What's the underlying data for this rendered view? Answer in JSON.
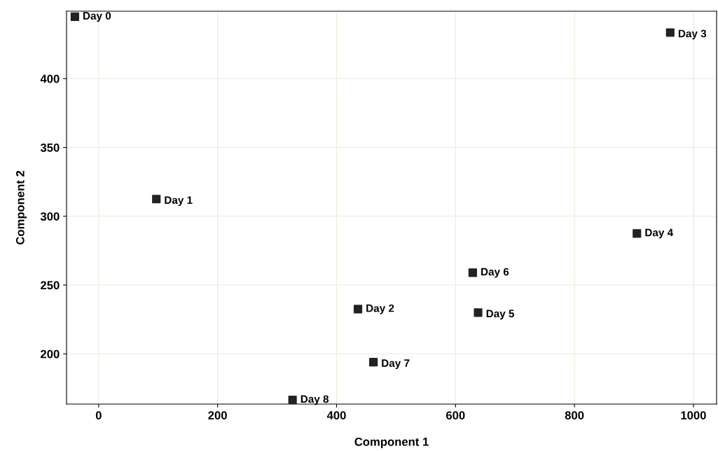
{
  "chart_data": {
    "type": "scatter",
    "xlabel": "Component 1",
    "ylabel": "Component 2",
    "x": [
      -40,
      97,
      436,
      961,
      905,
      638,
      629,
      462,
      326
    ],
    "values": [
      445,
      312.5,
      232.5,
      433.5,
      287.5,
      230,
      259,
      194,
      166.5
    ],
    "color": "#222222",
    "marker": "square",
    "annotations": [
      {
        "text": "Day 0",
        "x": -40,
        "y": 445
      },
      {
        "text": "Day 1",
        "x": 97,
        "y": 312.5
      },
      {
        "text": "Day 2",
        "x": 436,
        "y": 232.5
      },
      {
        "text": "Day 3",
        "x": 961,
        "y": 433.5
      },
      {
        "text": "Day 4",
        "x": 905,
        "y": 287.5
      },
      {
        "text": "Day 5",
        "x": 638,
        "y": 230
      },
      {
        "text": "Day 6",
        "x": 629,
        "y": 259
      },
      {
        "text": "Day 7",
        "x": 462,
        "y": 194
      },
      {
        "text": "Day 8",
        "x": 326,
        "y": 166.5
      }
    ],
    "xlim": [
      -54,
      1039
    ],
    "ylim": [
      163.5,
      449
    ],
    "xticks": [
      0,
      200,
      400,
      600,
      800,
      1000
    ],
    "yticks": [
      200,
      250,
      300,
      350,
      400
    ],
    "grid": true
  }
}
